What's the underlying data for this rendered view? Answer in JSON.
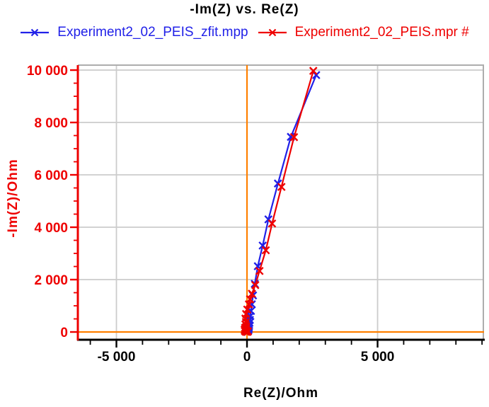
{
  "chart_data": {
    "type": "line",
    "title": "-Im(Z) vs. Re(Z)",
    "xlabel": "Re(Z)/Ohm",
    "ylabel": "-Im(Z)/Ohm",
    "xlim": [
      -6450,
      9050
    ],
    "ylim": [
      -270,
      10190
    ],
    "grid": {
      "show": true,
      "color": "#CCCCCC",
      "frame_color": "#ADADAD"
    },
    "x_axis": {
      "color": "#000000",
      "major_ticks": [
        -5000,
        0,
        5000
      ],
      "tick_labels": [
        "-5 000",
        "0",
        "5 000"
      ],
      "minor_tick_step": 1000,
      "minor_range": [
        -6000,
        9000
      ]
    },
    "y_axis": {
      "color": "#EE0000",
      "major_ticks": [
        0,
        2000,
        4000,
        6000,
        8000,
        10000
      ],
      "tick_labels": [
        "0",
        "2 000",
        "4 000",
        "6 000",
        "8 000",
        "10 000"
      ],
      "minor_tick_step": 500,
      "minor_range": [
        0,
        10000
      ]
    },
    "crosshair": {
      "x": 0,
      "y": 0,
      "color": "#FF8000"
    },
    "legend_position": "top",
    "series": [
      {
        "name": "Experiment2_02_PEIS_zfit.mpp",
        "color": "#2121E8",
        "marker": "x",
        "points": [
          [
            27,
            10
          ],
          [
            29,
            13
          ],
          [
            31,
            17
          ],
          [
            34,
            22
          ],
          [
            37,
            29
          ],
          [
            41,
            38
          ],
          [
            45,
            50
          ],
          [
            50,
            66
          ],
          [
            55,
            87
          ],
          [
            61,
            115
          ],
          [
            68,
            152
          ],
          [
            76,
            201
          ],
          [
            85,
            265
          ],
          [
            96,
            350
          ],
          [
            110,
            461
          ],
          [
            128,
            608
          ],
          [
            152,
            802
          ],
          [
            185,
            1058
          ],
          [
            230,
            1395
          ],
          [
            298,
            1840
          ],
          [
            414,
            2510
          ],
          [
            600,
            3300
          ],
          [
            820,
            4300
          ],
          [
            1185,
            5670
          ],
          [
            1680,
            7450
          ],
          [
            2650,
            9810
          ]
        ]
      },
      {
        "name": "Experiment2_02_PEIS.mpr #",
        "color": "#EE0000",
        "marker": "x",
        "points": [
          [
            -10,
            5
          ],
          [
            25,
            8
          ],
          [
            -45,
            11
          ],
          [
            10,
            15
          ],
          [
            -65,
            20
          ],
          [
            35,
            27
          ],
          [
            -80,
            37
          ],
          [
            -15,
            49
          ],
          [
            -60,
            66
          ],
          [
            -90,
            89
          ],
          [
            -35,
            119
          ],
          [
            -75,
            159
          ],
          [
            -25,
            213
          ],
          [
            -55,
            286
          ],
          [
            -40,
            383
          ],
          [
            -62,
            513
          ],
          [
            -35,
            688
          ],
          [
            9,
            857
          ],
          [
            73,
            1054
          ],
          [
            117,
            1251
          ],
          [
            190,
            1459
          ],
          [
            317,
            1790
          ],
          [
            480,
            2330
          ],
          [
            720,
            3120
          ],
          [
            960,
            4140
          ],
          [
            1320,
            5540
          ],
          [
            1800,
            7440
          ],
          [
            2540,
            9970
          ]
        ]
      }
    ]
  }
}
